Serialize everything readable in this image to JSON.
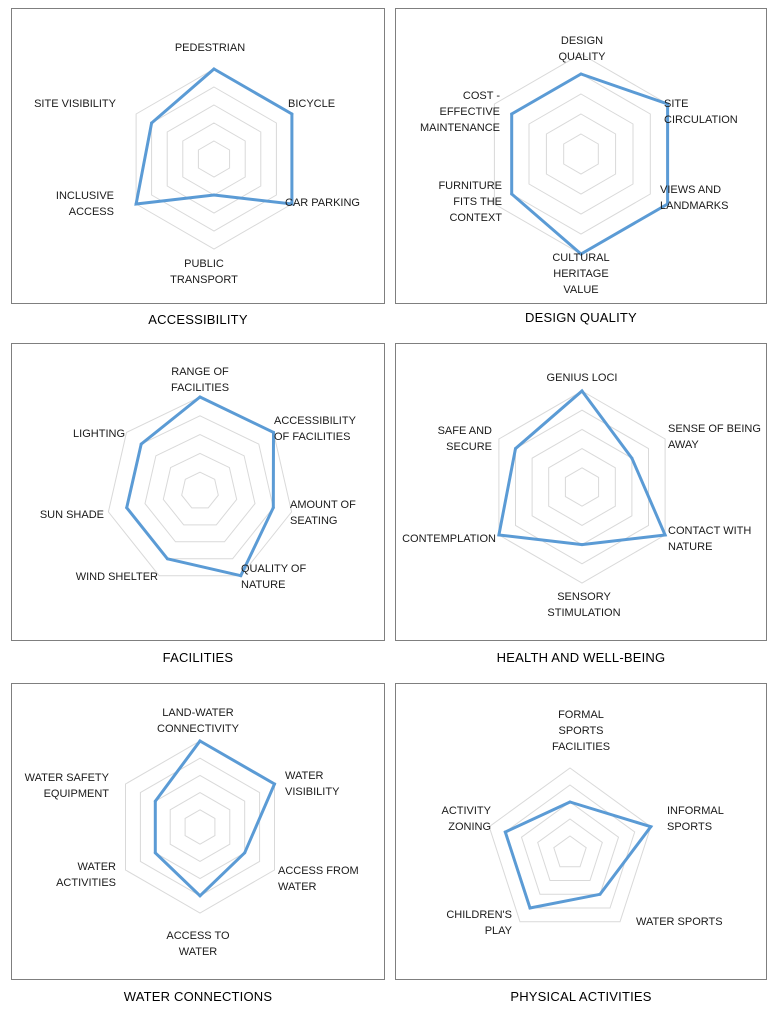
{
  "colors": {
    "series": "#5b9bd5",
    "grid": "#d9d9d9",
    "border": "#7f7f7f"
  },
  "chart_data": [
    {
      "type": "radar",
      "title": "ACCESSIBILITY",
      "categories": [
        "PEDESTRIAN",
        "BICYCLE",
        "CAR PARKING",
        "PUBLIC TRANSPORT",
        "INCLUSIVE ACCESS",
        "SITE VISIBILITY"
      ],
      "values": [
        5,
        5,
        5,
        2,
        5,
        4
      ],
      "rmax": 5,
      "grid": true
    },
    {
      "type": "radar",
      "title": "DESIGN QUALITY",
      "categories": [
        "DESIGN QUALITY",
        "SITE CIRCULATION",
        "VIEWS AND LANDMARKS",
        "CULTURAL HERITAGE VALUE",
        "FURNITURE FITS THE CONTEXT",
        "COST - EFFECTIVE MAINTENANCE"
      ],
      "values": [
        4,
        5,
        5,
        5,
        4,
        4
      ],
      "rmax": 5,
      "grid": true
    },
    {
      "type": "radar",
      "title": "FACILITIES",
      "categories": [
        "RANGE OF FACILITIES",
        "ACCESSIBILITY OF FACILITIES",
        "AMOUNT OF SEATING",
        "QUALITY OF NATURE",
        "WIND SHELTER",
        "SUN SHADE",
        "LIGHTING"
      ],
      "values": [
        5,
        5,
        4,
        5,
        4,
        4,
        4
      ],
      "rmax": 5,
      "grid": true
    },
    {
      "type": "radar",
      "title": "HEALTH AND WELL-BEING",
      "categories": [
        "GENIUS LOCI",
        "SENSE OF BEING AWAY",
        "CONTACT WITH NATURE",
        "SENSORY STIMULATION",
        "CONTEMPLATION",
        "SAFE AND SECURE"
      ],
      "values": [
        5,
        3,
        5,
        3,
        5,
        4
      ],
      "rmax": 5,
      "grid": true
    },
    {
      "type": "radar",
      "title": "WATER CONNECTIONS",
      "categories": [
        "LAND-WATER CONNECTIVITY",
        "WATER VISIBILITY",
        "ACCESS FROM WATER",
        "ACCESS TO WATER",
        "WATER ACTIVITIES",
        "WATER SAFETY EQUIPMENT"
      ],
      "values": [
        5,
        5,
        3,
        4,
        3,
        3
      ],
      "rmax": 5,
      "grid": true
    },
    {
      "type": "radar",
      "title": "PHYSICAL ACTIVITIES",
      "categories": [
        "FORMAL SPORTS FACILITIES",
        "INFORMAL SPORTS",
        "WATER SPORTS",
        "CHILDREN'S PLAY",
        "ACTIVITY ZONING"
      ],
      "values": [
        3,
        5,
        3,
        4,
        4
      ],
      "rmax": 5,
      "grid": true
    }
  ]
}
